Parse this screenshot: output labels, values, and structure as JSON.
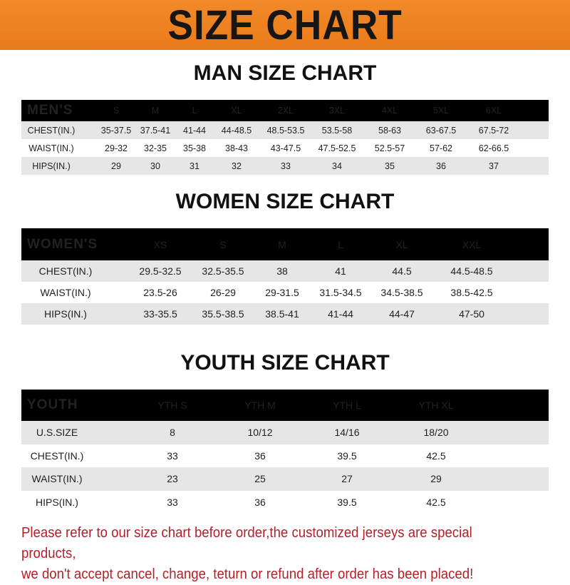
{
  "title": "SIZE CHART",
  "men": {
    "title": "MAN SIZE CHART",
    "header": [
      "MEN'S",
      "S",
      "M",
      "L",
      "XL",
      "2XL",
      "3XL",
      "4XL",
      "5XL",
      "6XL"
    ],
    "rows": [
      [
        "CHEST(IN.)",
        "35-37.5",
        "37.5-41",
        "41-44",
        "44-48.5",
        "48.5-53.5",
        "53.5-58",
        "58-63",
        "63-67.5",
        "67.5-72"
      ],
      [
        "WAIST(IN.)",
        "29-32",
        "32-35",
        "35-38",
        "38-43",
        "43-47.5",
        "47.5-52.5",
        "52.5-57",
        "57-62",
        "62-66.5"
      ],
      [
        "HIPS(IN.)",
        "29",
        "30",
        "31",
        "32",
        "33",
        "34",
        "35",
        "36",
        "37"
      ]
    ]
  },
  "women": {
    "title": "WOMEN SIZE CHART",
    "header": [
      "WOMEN'S",
      "XS",
      "S",
      "M",
      "L",
      "XL",
      "XXL"
    ],
    "rows": [
      [
        "CHEST(IN.)",
        "29.5-32.5",
        "32.5-35.5",
        "38",
        "41",
        "44.5",
        "44.5-48.5"
      ],
      [
        "WAIST(IN.)",
        "23.5-26",
        "26-29",
        "29-31.5",
        "31.5-34.5",
        "34.5-38.5",
        "38.5-42.5"
      ],
      [
        "HIPS(IN.)",
        "33-35.5",
        "35.5-38.5",
        "38.5-41",
        "41-44",
        "44-47",
        "47-50"
      ]
    ]
  },
  "youth": {
    "title": "YOUTH SIZE CHART",
    "header": [
      "YOUTH",
      "YTH S",
      "YTH M",
      "YTH L",
      "YTH XL"
    ],
    "rows": [
      [
        "U.S.SIZE",
        "8",
        "10/12",
        "14/16",
        "18/20"
      ],
      [
        "CHEST(IN.)",
        "33",
        "36",
        "39.5",
        "42.5"
      ],
      [
        "WAIST(IN.)",
        "23",
        "25",
        "27",
        "29"
      ],
      [
        "HIPS(IN.)",
        "33",
        "36",
        "39.5",
        "42.5"
      ]
    ]
  },
  "footer": {
    "line1": "Please refer to our size chart before order,the customized jerseys are special products,",
    "line2": "we don't accept cancel, change, teturn or refund after order has been placed!"
  },
  "colors": {
    "banner": "#ee8020",
    "header_row": "#000000",
    "shade_row": "#e6e6e6",
    "footer_text": "#b3202a"
  }
}
